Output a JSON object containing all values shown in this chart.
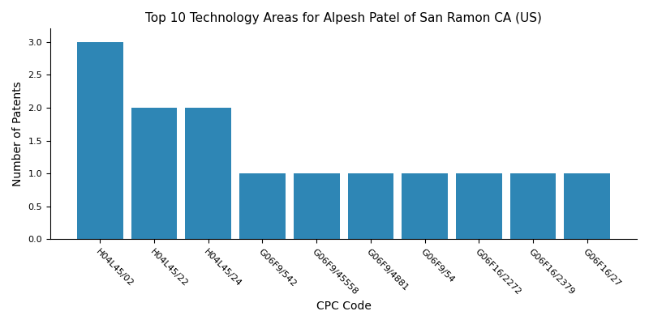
{
  "title": "Top 10 Technology Areas for Alpesh Patel of San Ramon CA (US)",
  "xlabel": "CPC Code",
  "ylabel": "Number of Patents",
  "categories": [
    "H04L45/02",
    "H04L45/22",
    "H04L45/24",
    "G06F9/542",
    "G06F9/45558",
    "G06F9/4881",
    "G06F9/54",
    "G06F16/2272",
    "G06F16/2379",
    "G06F16/27"
  ],
  "values": [
    3,
    2,
    2,
    1,
    1,
    1,
    1,
    1,
    1,
    1
  ],
  "bar_color": "#2e86b5",
  "ylim": [
    0,
    3.2
  ],
  "yticks": [
    0.0,
    0.5,
    1.0,
    1.5,
    2.0,
    2.5,
    3.0
  ],
  "title_fontsize": 11,
  "axis_label_fontsize": 10,
  "tick_fontsize": 8,
  "bar_width": 0.85,
  "figsize": [
    8.0,
    4.0
  ],
  "dpi": 100
}
